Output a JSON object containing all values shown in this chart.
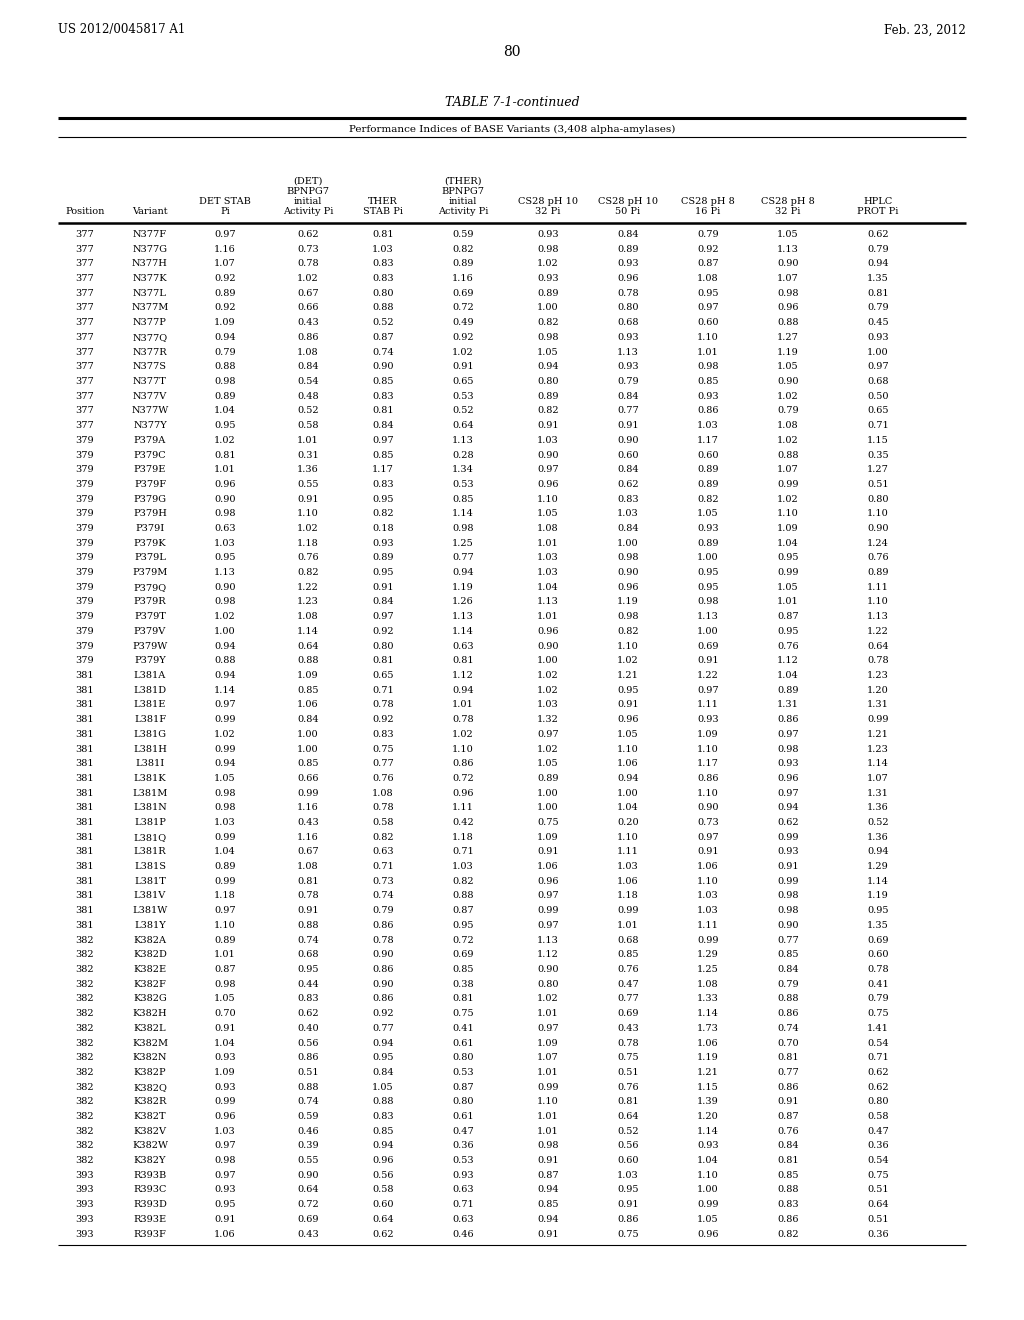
{
  "header_left": "US 2012/0045817 A1",
  "header_right": "Feb. 23, 2012",
  "page_number": "80",
  "table_title": "TABLE 7-1-continued",
  "subtitle": "Performance Indices of BASE Variants (3,408 alpha-amylases)",
  "rows": [
    [
      "377",
      "N377F",
      "0.97",
      "0.62",
      "0.81",
      "0.59",
      "0.93",
      "0.84",
      "0.79",
      "1.05",
      "0.62"
    ],
    [
      "377",
      "N377G",
      "1.16",
      "0.73",
      "1.03",
      "0.82",
      "0.98",
      "0.89",
      "0.92",
      "1.13",
      "0.79"
    ],
    [
      "377",
      "N377H",
      "1.07",
      "0.78",
      "0.83",
      "0.89",
      "1.02",
      "0.93",
      "0.87",
      "0.90",
      "0.94"
    ],
    [
      "377",
      "N377K",
      "0.92",
      "1.02",
      "0.83",
      "1.16",
      "0.93",
      "0.96",
      "1.08",
      "1.07",
      "1.35"
    ],
    [
      "377",
      "N377L",
      "0.89",
      "0.67",
      "0.80",
      "0.69",
      "0.89",
      "0.78",
      "0.95",
      "0.98",
      "0.81"
    ],
    [
      "377",
      "N377M",
      "0.92",
      "0.66",
      "0.88",
      "0.72",
      "1.00",
      "0.80",
      "0.97",
      "0.96",
      "0.79"
    ],
    [
      "377",
      "N377P",
      "1.09",
      "0.43",
      "0.52",
      "0.49",
      "0.82",
      "0.68",
      "0.60",
      "0.88",
      "0.45"
    ],
    [
      "377",
      "N377Q",
      "0.94",
      "0.86",
      "0.87",
      "0.92",
      "0.98",
      "0.93",
      "1.10",
      "1.27",
      "0.93"
    ],
    [
      "377",
      "N377R",
      "0.79",
      "1.08",
      "0.74",
      "1.02",
      "1.05",
      "1.13",
      "1.01",
      "1.19",
      "1.00"
    ],
    [
      "377",
      "N377S",
      "0.88",
      "0.84",
      "0.90",
      "0.91",
      "0.94",
      "0.93",
      "0.98",
      "1.05",
      "0.97"
    ],
    [
      "377",
      "N377T",
      "0.98",
      "0.54",
      "0.85",
      "0.65",
      "0.80",
      "0.79",
      "0.85",
      "0.90",
      "0.68"
    ],
    [
      "377",
      "N377V",
      "0.89",
      "0.48",
      "0.83",
      "0.53",
      "0.89",
      "0.84",
      "0.93",
      "1.02",
      "0.50"
    ],
    [
      "377",
      "N377W",
      "1.04",
      "0.52",
      "0.81",
      "0.52",
      "0.82",
      "0.77",
      "0.86",
      "0.79",
      "0.65"
    ],
    [
      "377",
      "N377Y",
      "0.95",
      "0.58",
      "0.84",
      "0.64",
      "0.91",
      "0.91",
      "1.03",
      "1.08",
      "0.71"
    ],
    [
      "379",
      "P379A",
      "1.02",
      "1.01",
      "0.97",
      "1.13",
      "1.03",
      "0.90",
      "1.17",
      "1.02",
      "1.15"
    ],
    [
      "379",
      "P379C",
      "0.81",
      "0.31",
      "0.85",
      "0.28",
      "0.90",
      "0.60",
      "0.60",
      "0.88",
      "0.35"
    ],
    [
      "379",
      "P379E",
      "1.01",
      "1.36",
      "1.17",
      "1.34",
      "0.97",
      "0.84",
      "0.89",
      "1.07",
      "1.27"
    ],
    [
      "379",
      "P379F",
      "0.96",
      "0.55",
      "0.83",
      "0.53",
      "0.96",
      "0.62",
      "0.89",
      "0.99",
      "0.51"
    ],
    [
      "379",
      "P379G",
      "0.90",
      "0.91",
      "0.95",
      "0.85",
      "1.10",
      "0.83",
      "0.82",
      "1.02",
      "0.80"
    ],
    [
      "379",
      "P379H",
      "0.98",
      "1.10",
      "0.82",
      "1.14",
      "1.05",
      "1.03",
      "1.05",
      "1.10",
      "1.10"
    ],
    [
      "379",
      "P379I",
      "0.63",
      "1.02",
      "0.18",
      "0.98",
      "1.08",
      "0.84",
      "0.93",
      "1.09",
      "0.90"
    ],
    [
      "379",
      "P379K",
      "1.03",
      "1.18",
      "0.93",
      "1.25",
      "1.01",
      "1.00",
      "0.89",
      "1.04",
      "1.24"
    ],
    [
      "379",
      "P379L",
      "0.95",
      "0.76",
      "0.89",
      "0.77",
      "1.03",
      "0.98",
      "1.00",
      "0.95",
      "0.76"
    ],
    [
      "379",
      "P379M",
      "1.13",
      "0.82",
      "0.95",
      "0.94",
      "1.03",
      "0.90",
      "0.95",
      "0.99",
      "0.89"
    ],
    [
      "379",
      "P379Q",
      "0.90",
      "1.22",
      "0.91",
      "1.19",
      "1.04",
      "0.96",
      "0.95",
      "1.05",
      "1.11"
    ],
    [
      "379",
      "P379R",
      "0.98",
      "1.23",
      "0.84",
      "1.26",
      "1.13",
      "1.19",
      "0.98",
      "1.01",
      "1.10"
    ],
    [
      "379",
      "P379T",
      "1.02",
      "1.08",
      "0.97",
      "1.13",
      "1.01",
      "0.98",
      "1.13",
      "0.87",
      "1.13"
    ],
    [
      "379",
      "P379V",
      "1.00",
      "1.14",
      "0.92",
      "1.14",
      "0.96",
      "0.82",
      "1.00",
      "0.95",
      "1.22"
    ],
    [
      "379",
      "P379W",
      "0.94",
      "0.64",
      "0.80",
      "0.63",
      "0.90",
      "1.10",
      "0.69",
      "0.76",
      "0.64"
    ],
    [
      "379",
      "P379Y",
      "0.88",
      "0.88",
      "0.81",
      "0.81",
      "1.00",
      "1.02",
      "0.91",
      "1.12",
      "0.78"
    ],
    [
      "381",
      "L381A",
      "0.94",
      "1.09",
      "0.65",
      "1.12",
      "1.02",
      "1.21",
      "1.22",
      "1.04",
      "1.23"
    ],
    [
      "381",
      "L381D",
      "1.14",
      "0.85",
      "0.71",
      "0.94",
      "1.02",
      "0.95",
      "0.97",
      "0.89",
      "1.20"
    ],
    [
      "381",
      "L381E",
      "0.97",
      "1.06",
      "0.78",
      "1.01",
      "1.03",
      "0.91",
      "1.11",
      "1.31",
      "1.31"
    ],
    [
      "381",
      "L381F",
      "0.99",
      "0.84",
      "0.92",
      "0.78",
      "1.32",
      "0.96",
      "0.93",
      "0.86",
      "0.99"
    ],
    [
      "381",
      "L381G",
      "1.02",
      "1.00",
      "0.83",
      "1.02",
      "0.97",
      "1.05",
      "1.09",
      "0.97",
      "1.21"
    ],
    [
      "381",
      "L381H",
      "0.99",
      "1.00",
      "0.75",
      "1.10",
      "1.02",
      "1.10",
      "1.10",
      "0.98",
      "1.23"
    ],
    [
      "381",
      "L381I",
      "0.94",
      "0.85",
      "0.77",
      "0.86",
      "1.05",
      "1.06",
      "1.17",
      "0.93",
      "1.14"
    ],
    [
      "381",
      "L381K",
      "1.05",
      "0.66",
      "0.76",
      "0.72",
      "0.89",
      "0.94",
      "0.86",
      "0.96",
      "1.07"
    ],
    [
      "381",
      "L381M",
      "0.98",
      "0.99",
      "1.08",
      "0.96",
      "1.00",
      "1.00",
      "1.10",
      "0.97",
      "1.31"
    ],
    [
      "381",
      "L381N",
      "0.98",
      "1.16",
      "0.78",
      "1.11",
      "1.00",
      "1.04",
      "0.90",
      "0.94",
      "1.36"
    ],
    [
      "381",
      "L381P",
      "1.03",
      "0.43",
      "0.58",
      "0.42",
      "0.75",
      "0.20",
      "0.73",
      "0.62",
      "0.52"
    ],
    [
      "381",
      "L381Q",
      "0.99",
      "1.16",
      "0.82",
      "1.18",
      "1.09",
      "1.10",
      "0.97",
      "0.99",
      "1.36"
    ],
    [
      "381",
      "L381R",
      "1.04",
      "0.67",
      "0.63",
      "0.71",
      "0.91",
      "1.11",
      "0.91",
      "0.93",
      "0.94"
    ],
    [
      "381",
      "L381S",
      "0.89",
      "1.08",
      "0.71",
      "1.03",
      "1.06",
      "1.03",
      "1.06",
      "0.91",
      "1.29"
    ],
    [
      "381",
      "L381T",
      "0.99",
      "0.81",
      "0.73",
      "0.82",
      "0.96",
      "1.06",
      "1.10",
      "0.99",
      "1.14"
    ],
    [
      "381",
      "L381V",
      "1.18",
      "0.78",
      "0.74",
      "0.88",
      "0.97",
      "1.18",
      "1.03",
      "0.98",
      "1.19"
    ],
    [
      "381",
      "L381W",
      "0.97",
      "0.91",
      "0.79",
      "0.87",
      "0.99",
      "0.99",
      "1.03",
      "0.98",
      "0.95"
    ],
    [
      "381",
      "L381Y",
      "1.10",
      "0.88",
      "0.86",
      "0.95",
      "0.97",
      "1.01",
      "1.11",
      "0.90",
      "1.35"
    ],
    [
      "382",
      "K382A",
      "0.89",
      "0.74",
      "0.78",
      "0.72",
      "1.13",
      "0.68",
      "0.99",
      "0.77",
      "0.69"
    ],
    [
      "382",
      "K382D",
      "1.01",
      "0.68",
      "0.90",
      "0.69",
      "1.12",
      "0.85",
      "1.29",
      "0.85",
      "0.60"
    ],
    [
      "382",
      "K382E",
      "0.87",
      "0.95",
      "0.86",
      "0.85",
      "0.90",
      "0.76",
      "1.25",
      "0.84",
      "0.78"
    ],
    [
      "382",
      "K382F",
      "0.98",
      "0.44",
      "0.90",
      "0.38",
      "0.80",
      "0.47",
      "1.08",
      "0.79",
      "0.41"
    ],
    [
      "382",
      "K382G",
      "1.05",
      "0.83",
      "0.86",
      "0.81",
      "1.02",
      "0.77",
      "1.33",
      "0.88",
      "0.79"
    ],
    [
      "382",
      "K382H",
      "0.70",
      "0.62",
      "0.92",
      "0.75",
      "1.01",
      "0.69",
      "1.14",
      "0.86",
      "0.75"
    ],
    [
      "382",
      "K382L",
      "0.91",
      "0.40",
      "0.77",
      "0.41",
      "0.97",
      "0.43",
      "1.73",
      "0.74",
      "1.41"
    ],
    [
      "382",
      "K382M",
      "1.04",
      "0.56",
      "0.94",
      "0.61",
      "1.09",
      "0.78",
      "1.06",
      "0.70",
      "0.54"
    ],
    [
      "382",
      "K382N",
      "0.93",
      "0.86",
      "0.95",
      "0.80",
      "1.07",
      "0.75",
      "1.19",
      "0.81",
      "0.71"
    ],
    [
      "382",
      "K382P",
      "1.09",
      "0.51",
      "0.84",
      "0.53",
      "1.01",
      "0.51",
      "1.21",
      "0.77",
      "0.62"
    ],
    [
      "382",
      "K382Q",
      "0.93",
      "0.88",
      "1.05",
      "0.87",
      "0.99",
      "0.76",
      "1.15",
      "0.86",
      "0.62"
    ],
    [
      "382",
      "K382R",
      "0.99",
      "0.74",
      "0.88",
      "0.80",
      "1.10",
      "0.81",
      "1.39",
      "0.91",
      "0.80"
    ],
    [
      "382",
      "K382T",
      "0.96",
      "0.59",
      "0.83",
      "0.61",
      "1.01",
      "0.64",
      "1.20",
      "0.87",
      "0.58"
    ],
    [
      "382",
      "K382V",
      "1.03",
      "0.46",
      "0.85",
      "0.47",
      "1.01",
      "0.52",
      "1.14",
      "0.76",
      "0.47"
    ],
    [
      "382",
      "K382W",
      "0.97",
      "0.39",
      "0.94",
      "0.36",
      "0.98",
      "0.56",
      "0.93",
      "0.84",
      "0.36"
    ],
    [
      "382",
      "K382Y",
      "0.98",
      "0.55",
      "0.96",
      "0.53",
      "0.91",
      "0.60",
      "1.04",
      "0.81",
      "0.54"
    ],
    [
      "393",
      "R393B",
      "0.97",
      "0.90",
      "0.56",
      "0.93",
      "0.87",
      "1.03",
      "1.10",
      "0.85",
      "0.75"
    ],
    [
      "393",
      "R393C",
      "0.93",
      "0.64",
      "0.58",
      "0.63",
      "0.94",
      "0.95",
      "1.00",
      "0.88",
      "0.51"
    ],
    [
      "393",
      "R393D",
      "0.95",
      "0.72",
      "0.60",
      "0.71",
      "0.85",
      "0.91",
      "0.99",
      "0.83",
      "0.64"
    ],
    [
      "393",
      "R393E",
      "0.91",
      "0.69",
      "0.64",
      "0.63",
      "0.94",
      "0.86",
      "1.05",
      "0.86",
      "0.51"
    ],
    [
      "393",
      "R393F",
      "1.06",
      "0.43",
      "0.62",
      "0.46",
      "0.91",
      "0.75",
      "0.96",
      "0.82",
      "0.36"
    ]
  ]
}
